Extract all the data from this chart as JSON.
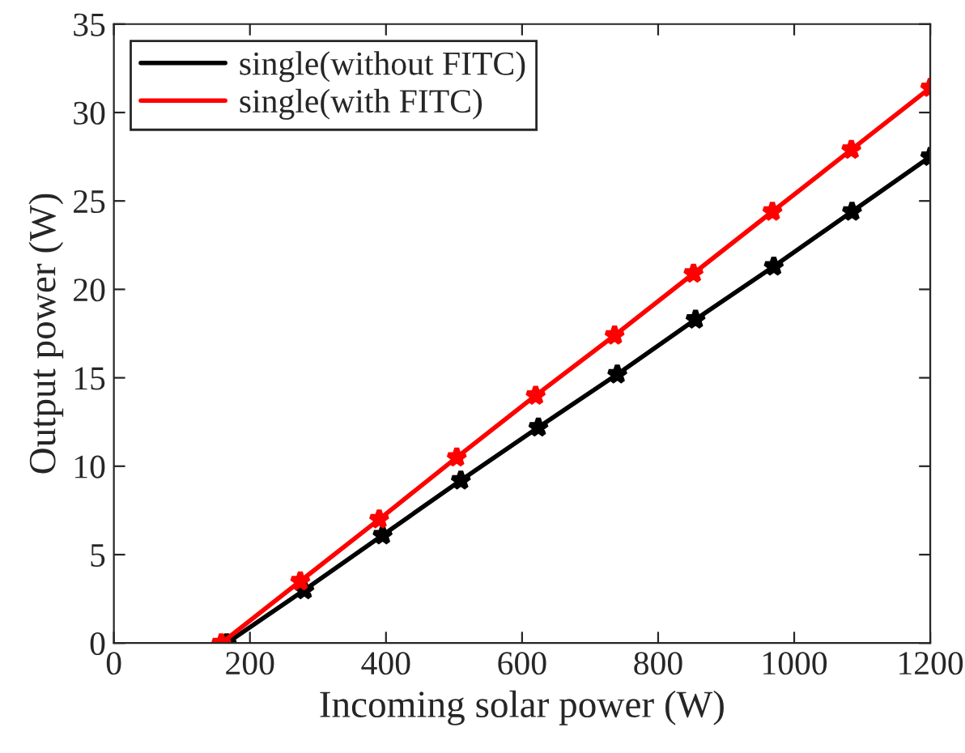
{
  "chart_data": {
    "type": "line",
    "xlabel": "Incoming solar power (W)",
    "ylabel": "Output power (W)",
    "xlim": [
      0,
      1200
    ],
    "xticks": [
      0,
      200,
      400,
      600,
      800,
      1000,
      1200
    ],
    "ylim": [
      0,
      35
    ],
    "yticks": [
      0,
      5,
      10,
      15,
      20,
      25,
      30,
      35
    ],
    "grid": false,
    "legend": "top left",
    "marker": "star",
    "line_style": "solid",
    "series": [
      {
        "name": "single(without FITC)",
        "color": "#000000",
        "x": [
          166,
          280,
          395,
          510,
          624,
          740,
          855,
          970,
          1085,
          1200
        ],
        "values": [
          0,
          3.0,
          6.1,
          9.2,
          12.2,
          15.2,
          18.3,
          21.3,
          24.4,
          27.5
        ]
      },
      {
        "name": "single(with FITC)",
        "color": "#ff0000",
        "x": [
          158,
          274,
          390,
          504,
          620,
          736,
          852,
          968,
          1084,
          1200
        ],
        "values": [
          0,
          3.5,
          7.0,
          10.5,
          14.0,
          17.4,
          20.9,
          24.4,
          27.9,
          31.4
        ]
      }
    ]
  }
}
